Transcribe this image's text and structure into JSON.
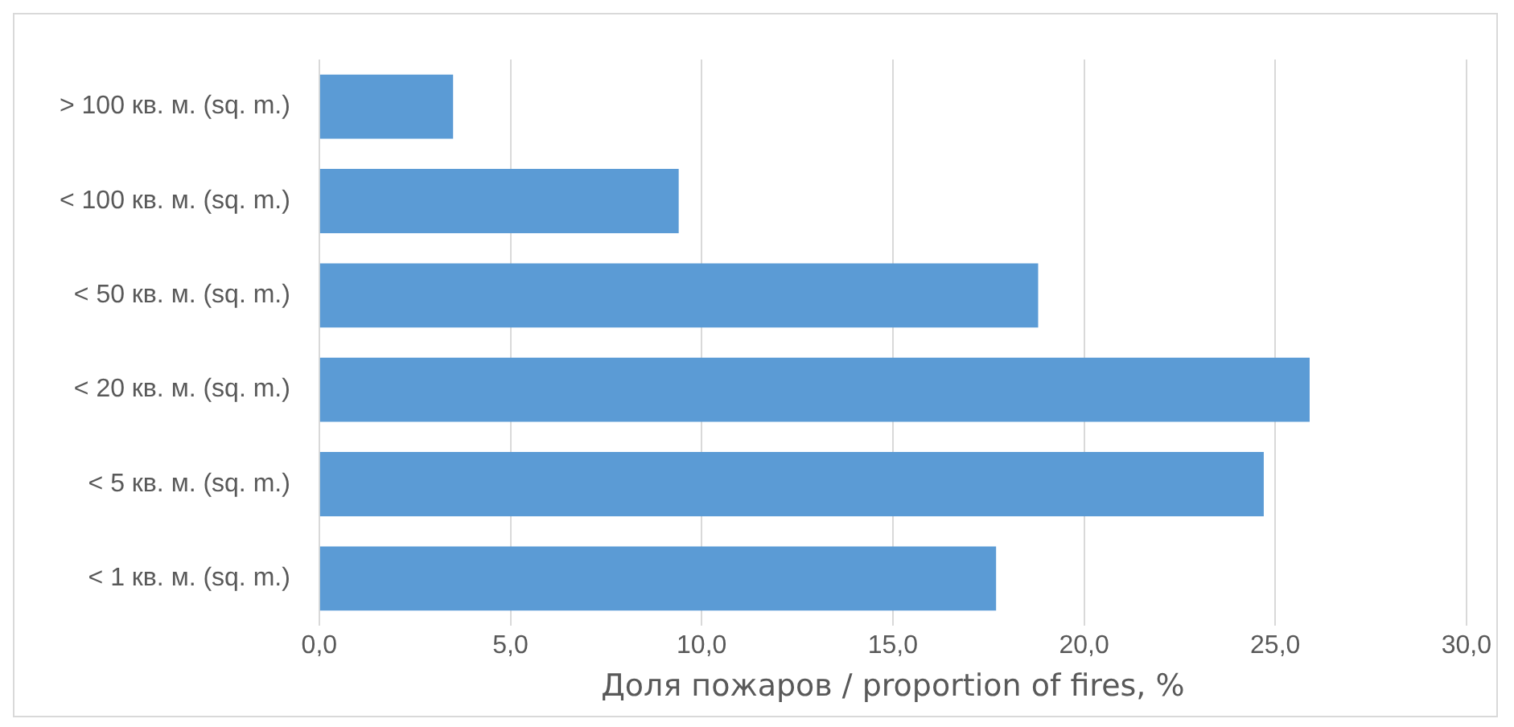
{
  "chart_data": {
    "type": "bar",
    "orientation": "horizontal",
    "xlabel": "Доля пожаров / proportion of fires, %",
    "categories": [
      "> 100 кв. м. (sq. m.)",
      "< 100 кв. м. (sq. m.)",
      "< 50 кв. м. (sq. m.)",
      "< 20 кв. м. (sq. m.)",
      "< 5 кв. м. (sq. m.)",
      "< 1 кв. м. (sq. m.)"
    ],
    "values": [
      3.5,
      9.4,
      18.8,
      25.9,
      24.7,
      17.7
    ],
    "color": "#5b9bd5",
    "xlim": [
      0,
      30
    ],
    "xticks": [
      {
        "value": 0,
        "label": "0,0"
      },
      {
        "value": 5,
        "label": "5,0"
      },
      {
        "value": 10,
        "label": "10,0"
      },
      {
        "value": 15,
        "label": "15,0"
      },
      {
        "value": 20,
        "label": "20,0"
      },
      {
        "value": 25,
        "label": "25,0"
      },
      {
        "value": 30,
        "label": "30,0"
      }
    ],
    "grid": "x",
    "legend": false
  }
}
